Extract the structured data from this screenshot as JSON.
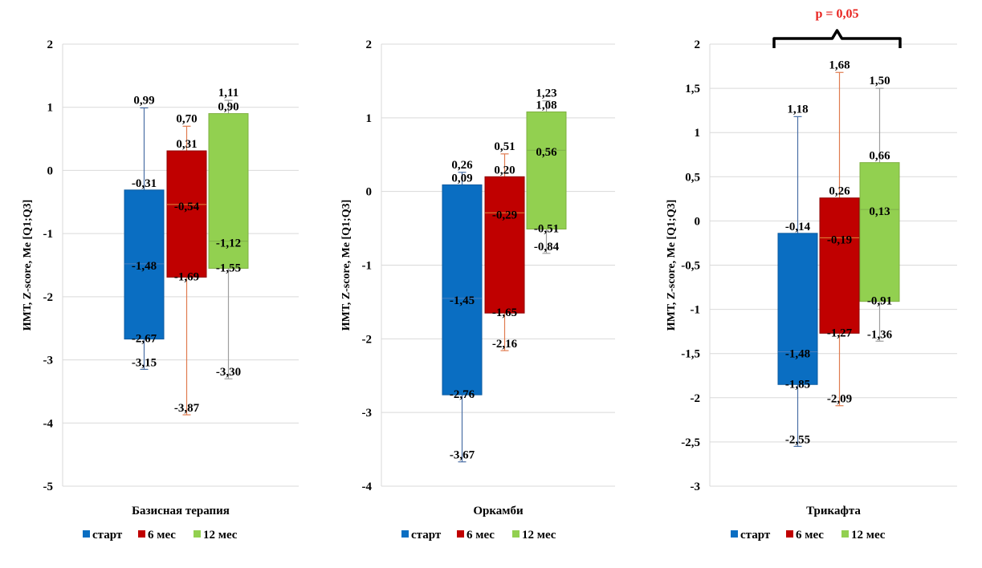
{
  "legend": {
    "items": [
      {
        "label": "старт",
        "color": "#0a6ec2"
      },
      {
        "label": "6 мес",
        "color": "#c00000"
      },
      {
        "label": "12 мес",
        "color": "#92d050"
      }
    ]
  },
  "chart_data": [
    {
      "type": "box",
      "category": "Базисная терапия",
      "ylabel": "ИМТ, Z-score, Me [Q1;Q3]",
      "ylim": [
        -5,
        2
      ],
      "yticks": [
        "-5",
        "-4",
        "-3",
        "-2",
        "-1",
        "0",
        "1",
        "2"
      ],
      "ytick_values": [
        -5,
        -4,
        -3,
        -2,
        -1,
        0,
        1,
        2
      ],
      "grid": true,
      "legend_position": "bottom",
      "series": [
        {
          "name": "старт",
          "min": -3.15,
          "q1": -2.67,
          "median": -1.48,
          "q3": -0.31,
          "max": 0.99,
          "labels": {
            "min": "-3,15",
            "q1": "-2,67",
            "median": "-1,48",
            "q3": "-0,31",
            "max": "0,99"
          }
        },
        {
          "name": "6 мес",
          "min": -3.87,
          "q1": -1.69,
          "median": -0.54,
          "q3": 0.31,
          "max": 0.7,
          "labels": {
            "min": "-3,87",
            "q1": "-1,69",
            "median": "-0,54",
            "q3": "0,31",
            "max": "0,70"
          }
        },
        {
          "name": "12 мес",
          "min": -3.3,
          "q1": -1.55,
          "median": -1.12,
          "q3": 0.9,
          "max": 1.11,
          "labels": {
            "min": "-3,30",
            "q1": "-1,55",
            "median": "-1,12",
            "q3": "0,90",
            "max": "1,11"
          }
        }
      ]
    },
    {
      "type": "box",
      "category": "Оркамби",
      "ylabel": "ИМТ, Z-score, Me [Q1;Q3]",
      "ylim": [
        -4,
        2
      ],
      "yticks": [
        "-4",
        "-3",
        "-2",
        "-1",
        "0",
        "1",
        "2"
      ],
      "ytick_values": [
        -4,
        -3,
        -2,
        -1,
        0,
        1,
        2
      ],
      "grid": true,
      "legend_position": "bottom",
      "series": [
        {
          "name": "старт",
          "min": -3.67,
          "q1": -2.76,
          "median": -1.45,
          "q3": 0.09,
          "max": 0.26,
          "labels": {
            "min": "-3,67",
            "q1": "-2,76",
            "median": "-1,45",
            "q3": "0,09",
            "max": "0,26"
          }
        },
        {
          "name": "6 мес",
          "min": -2.16,
          "q1": -1.65,
          "median": -0.29,
          "q3": 0.2,
          "max": 0.51,
          "labels": {
            "min": "-2,16",
            "q1": "-1,65",
            "median": "-0,29",
            "q3": "0,20",
            "max": "0,51"
          }
        },
        {
          "name": "12 мес",
          "min": -0.84,
          "q1": -0.51,
          "median": 0.56,
          "q3": 1.08,
          "max": 1.23,
          "labels": {
            "min": "-0,84",
            "q1": "-0,51",
            "median": "0,56",
            "q3": "1,08",
            "max": "1,23"
          }
        }
      ]
    },
    {
      "type": "box",
      "category": "Трикафта",
      "ylabel": "ИМТ, Z-score, Me [Q1;Q3]",
      "ylim": [
        -3,
        2
      ],
      "yticks": [
        "-3",
        "-2,5",
        "-2",
        "-1,5",
        "-1",
        "-0,5",
        "0",
        "0,5",
        "1",
        "1,5",
        "2"
      ],
      "ytick_values": [
        -3,
        -2.5,
        -2,
        -1.5,
        -1,
        -0.5,
        0,
        0.5,
        1,
        1.5,
        2
      ],
      "grid": true,
      "legend_position": "bottom",
      "annotation": "p = 0,05",
      "series": [
        {
          "name": "старт",
          "min": -2.55,
          "q1": -1.85,
          "median": -1.48,
          "q3": -0.14,
          "max": 1.18,
          "labels": {
            "min": "-2,55",
            "q1": "-1,85",
            "median": "-1,48",
            "q3": "-0,14",
            "max": "1,18"
          }
        },
        {
          "name": "6 мес",
          "min": -2.09,
          "q1": -1.27,
          "median": -0.19,
          "q3": 0.26,
          "max": 1.68,
          "labels": {
            "min": "-2,09",
            "q1": "-1,27",
            "median": "-0,19",
            "q3": "0,26",
            "max": "1,68"
          }
        },
        {
          "name": "12 мес",
          "min": -1.36,
          "q1": -0.91,
          "median": 0.13,
          "q3": 0.66,
          "max": 1.5,
          "labels": {
            "min": "-1,36",
            "q1": "-0,91",
            "median": "0,13",
            "q3": "0,66",
            "max": "1,50"
          }
        }
      ]
    }
  ]
}
